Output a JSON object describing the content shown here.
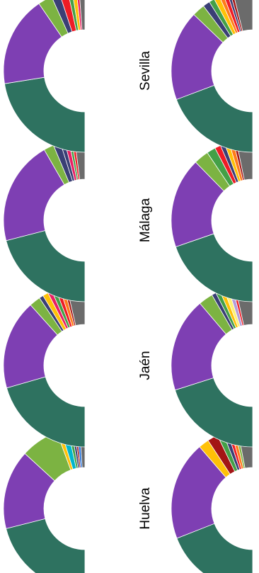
{
  "colors": {
    "green_dark": "#2e7260",
    "purple": "#7e3fb3",
    "green_light": "#7cb342",
    "navy": "#3a3f75",
    "red": "#ee1c25",
    "dark_red": "#a31515",
    "green": "#43a047",
    "yellow": "#ffc107",
    "light_yellow": "#fff176",
    "pink": "#e91e63",
    "orange": "#ff7b1a",
    "cyan": "#00b5cc",
    "blue": "#1e6fd9",
    "lavender": "#b39ddb",
    "gray": "#6b6b6b"
  },
  "chart_data": [
    {
      "type": "pie",
      "title": "Huelva",
      "series": [
        {
          "values": [
            36.0,
            27.0,
            13.0,
            1.5,
            2.3,
            1.2,
            1.0,
            0.8,
            1.0,
            1.8
          ]
        },
        {
          "values": [
            32.0,
            33.0,
            3.5,
            3.5,
            2.0,
            1.5,
            1.2,
            1.3,
            1.0,
            5.0
          ]
        }
      ]
    },
    {
      "type": "pie",
      "title": "Jaén",
      "series": [
        {
          "values": [
            37.0,
            32.0,
            4.0,
            1.5,
            2.0,
            1.5,
            1.5,
            1.5,
            1.5,
            1.0,
            6.5
          ]
        },
        {
          "values": [
            35.0,
            32.5,
            5.0,
            1.5,
            1.5,
            1.5,
            1.5,
            1.5,
            1.0,
            6.0
          ]
        }
      ]
    },
    {
      "type": "pie",
      "title": "Málaga",
      "series": [
        {
          "values": [
            36.5,
            36.0,
            3.5,
            2.5,
            1.5,
            1.5,
            1.0,
            1.0,
            3.5
          ]
        },
        {
          "values": [
            33.5,
            30.5,
            5.0,
            3.0,
            2.0,
            1.5,
            1.5,
            1.5,
            1.0,
            5.5
          ]
        }
      ]
    },
    {
      "type": "pie",
      "title": "Sevilla",
      "series": [
        {
          "values": [
            40.0,
            32.0,
            5.0,
            3.0,
            3.0,
            1.5,
            1.5,
            1.0,
            2.0
          ]
        },
        {
          "values": [
            34.5,
            32.0,
            4.5,
            2.5,
            2.0,
            2.0,
            1.5,
            1.5,
            1.0,
            1.0,
            7.0
          ]
        }
      ]
    }
  ],
  "chart_colors": [
    [
      "green_dark",
      "purple",
      "green_light",
      "yellow",
      "cyan",
      "green",
      "navy",
      "dark_red",
      "blue",
      "gray"
    ],
    [
      "green_dark",
      "purple",
      "yellow",
      "dark_red",
      "green",
      "navy",
      "red",
      "orange",
      "green_light",
      "gray"
    ],
    [
      "green_dark",
      "purple",
      "green_light",
      "navy",
      "yellow",
      "pink",
      "green",
      "red",
      "orange",
      "dark_red",
      "gray"
    ],
    [
      "green_dark",
      "purple",
      "green_light",
      "navy",
      "green",
      "yellow",
      "light_yellow",
      "lavender",
      "red",
      "gray"
    ],
    [
      "green_dark",
      "purple",
      "green_light",
      "navy",
      "navy",
      "pink",
      "green",
      "red",
      "gray"
    ],
    [
      "green_dark",
      "purple",
      "green_light",
      "green",
      "red",
      "navy",
      "yellow",
      "orange",
      "dark_red",
      "gray"
    ],
    [
      "green_dark",
      "purple",
      "green_light",
      "navy",
      "red",
      "green",
      "yellow",
      "pink",
      "gray"
    ],
    [
      "green_dark",
      "purple",
      "green_light",
      "navy",
      "green",
      "yellow",
      "orange",
      "red",
      "navy",
      "dark_red",
      "gray"
    ]
  ]
}
